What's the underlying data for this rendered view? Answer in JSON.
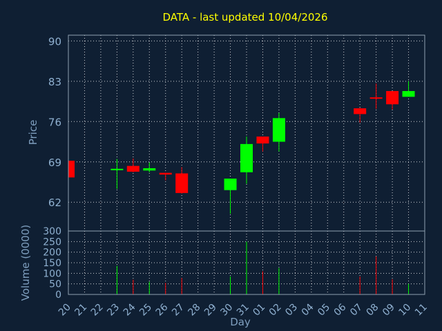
{
  "chart_data": {
    "type": "candlestick",
    "title": "DATA - last updated 10/04/2026",
    "xlabel": "Day",
    "price_ylabel": "Price",
    "volume_ylabel": "Volume (0000)",
    "price_ticks": [
      62,
      69,
      76,
      83,
      90
    ],
    "price_range": [
      57,
      91
    ],
    "volume_ticks": [
      0,
      50,
      100,
      150,
      200,
      250,
      300
    ],
    "volume_range": [
      0,
      300
    ],
    "x_ticks": [
      "20",
      "21",
      "22",
      "23",
      "24",
      "25",
      "26",
      "27",
      "28",
      "29",
      "30",
      "31",
      "01",
      "02",
      "03",
      "04",
      "05",
      "06",
      "07",
      "08",
      "09",
      "10",
      "11"
    ],
    "up_color": "#00ff00",
    "down_color": "#ff0000",
    "candles": [
      {
        "x": "20",
        "open": 69.2,
        "close": 66.3,
        "high": 69.3,
        "low": 66.2,
        "volume": 0
      },
      {
        "x": "23",
        "open": 67.6,
        "close": 67.8,
        "high": 69.5,
        "low": 64.3,
        "volume": 135
      },
      {
        "x": "24",
        "open": 68.3,
        "close": 67.3,
        "high": 69.6,
        "low": 67.2,
        "volume": 70
      },
      {
        "x": "25",
        "open": 67.5,
        "close": 67.9,
        "high": 68.9,
        "low": 67.2,
        "volume": 60
      },
      {
        "x": "26",
        "open": 67.1,
        "close": 66.8,
        "high": 67.1,
        "low": 65.8,
        "volume": 55
      },
      {
        "x": "27",
        "open": 67.0,
        "close": 63.6,
        "high": 68.1,
        "low": 63.5,
        "volume": 78
      },
      {
        "x": "30",
        "open": 64.1,
        "close": 66.1,
        "high": 66.1,
        "low": 60.0,
        "volume": 85
      },
      {
        "x": "31",
        "open": 67.2,
        "close": 72.1,
        "high": 73.4,
        "low": 65.2,
        "volume": 250
      },
      {
        "x": "01",
        "open": 73.4,
        "close": 72.2,
        "high": 73.4,
        "low": 70.8,
        "volume": 110
      },
      {
        "x": "02",
        "open": 72.5,
        "close": 76.6,
        "high": 77.5,
        "low": 70.8,
        "volume": 125
      },
      {
        "x": "07",
        "open": 78.3,
        "close": 77.3,
        "high": 78.4,
        "low": 75.8,
        "volume": 85
      },
      {
        "x": "08",
        "open": 80.2,
        "close": 80.0,
        "high": 82.6,
        "low": 78.2,
        "volume": 180
      },
      {
        "x": "09",
        "open": 81.3,
        "close": 79.0,
        "high": 81.3,
        "low": 78.1,
        "volume": 72
      },
      {
        "x": "10",
        "open": 80.3,
        "close": 81.3,
        "high": 83.0,
        "low": 80.3,
        "volume": 50
      }
    ]
  }
}
